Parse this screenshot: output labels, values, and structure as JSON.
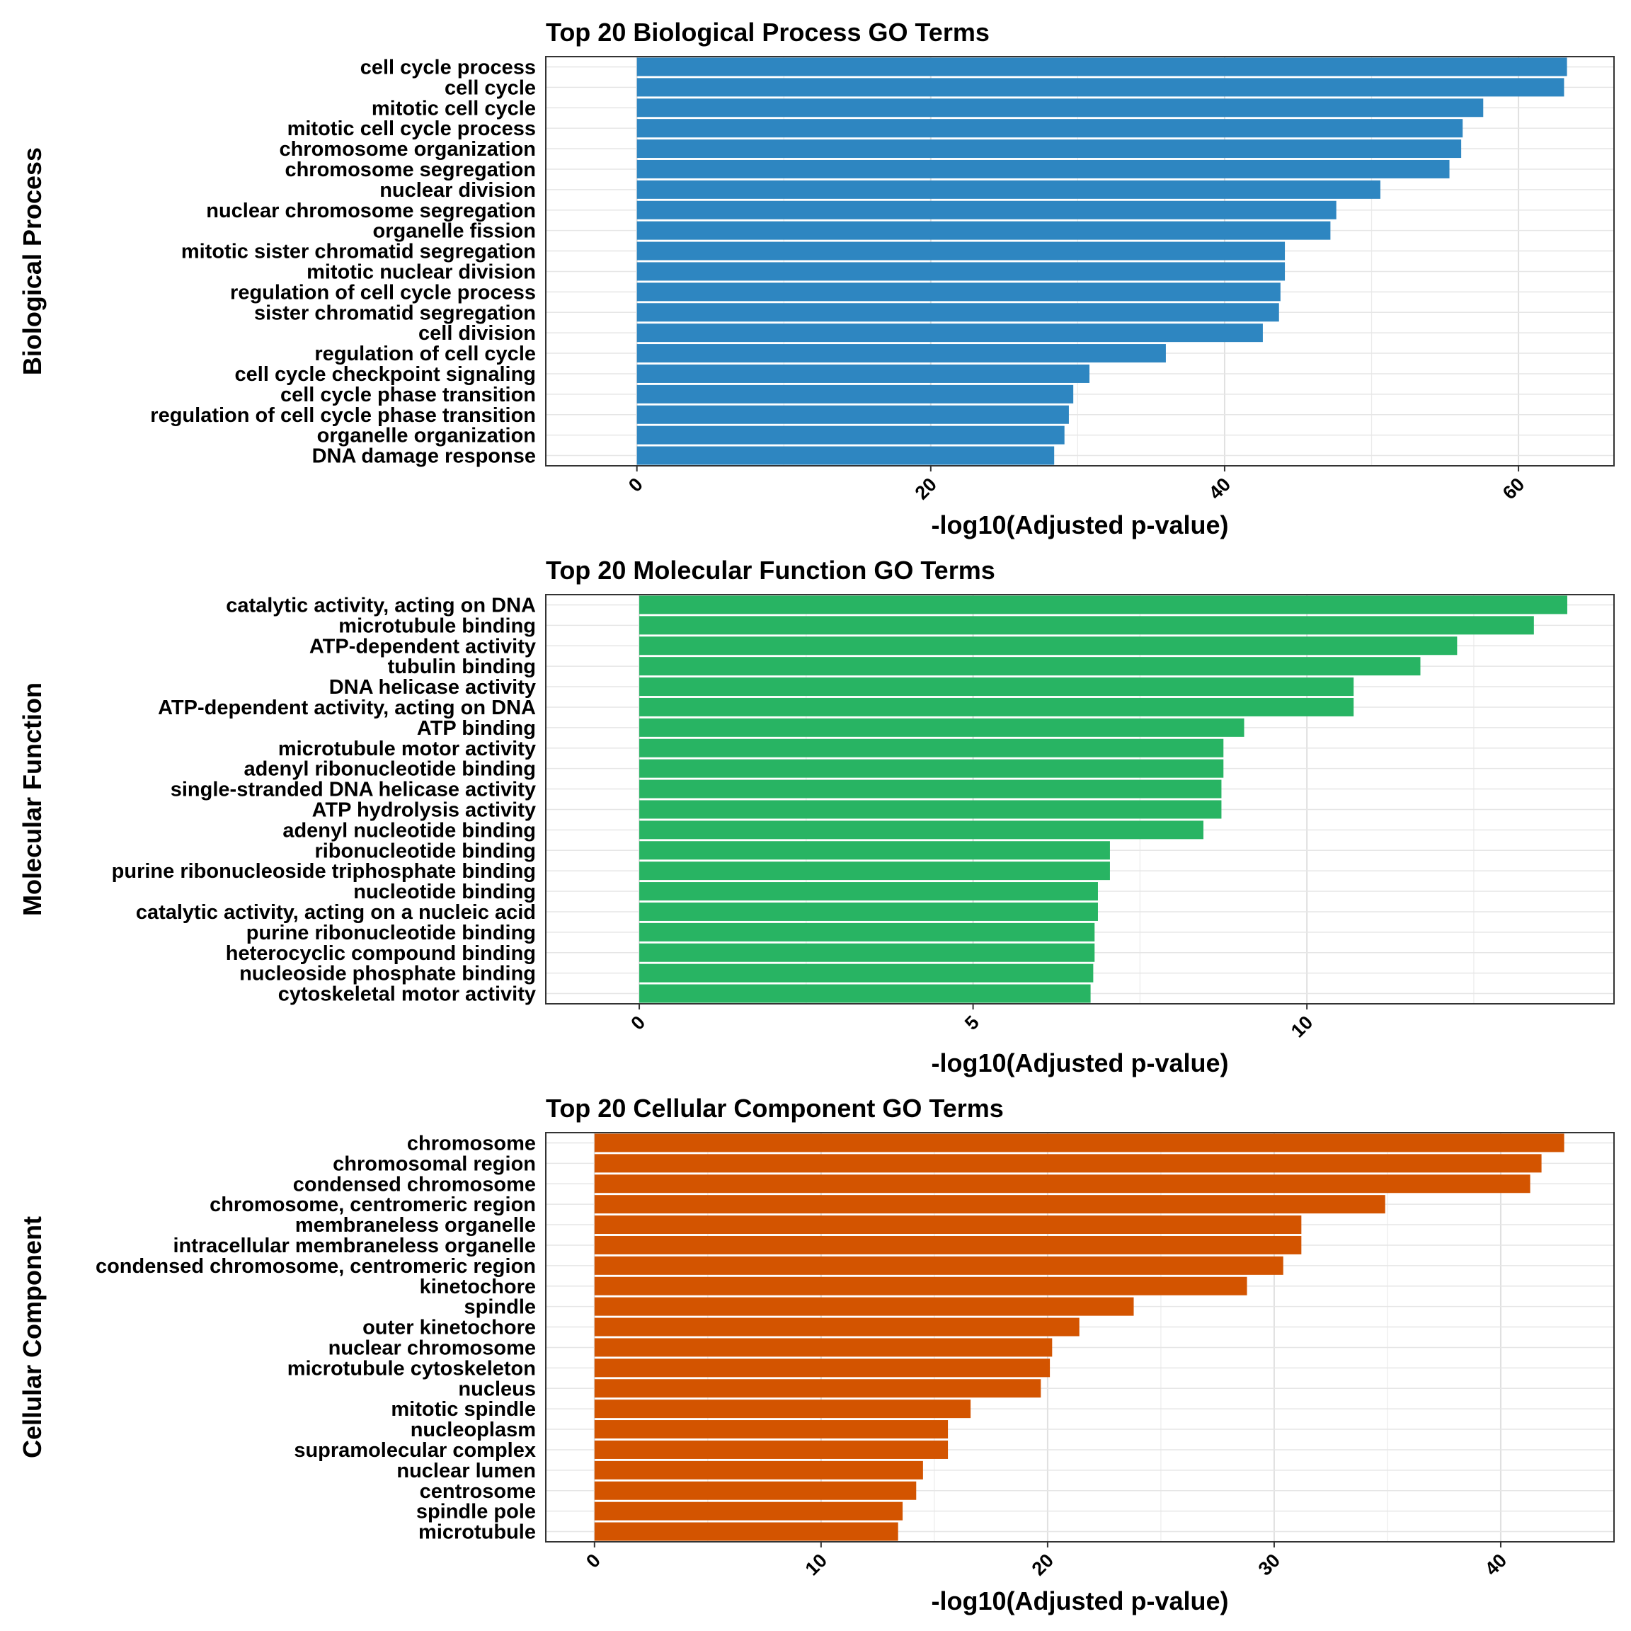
{
  "chart_data": [
    {
      "type": "bar",
      "orientation": "horizontal",
      "title": "Top 20 Biological Process GO Terms",
      "xlabel": "-log10(Adjusted p-value)",
      "ylabel": "Biological Process",
      "xlim": [
        -6.2,
        66.5
      ],
      "xticks": [
        0,
        20,
        40,
        60
      ],
      "color": "#2E86C1",
      "grid": true,
      "categories": [
        "cell cycle process",
        "cell cycle",
        "mitotic cell cycle",
        "mitotic cell cycle process",
        "chromosome organization",
        "chromosome segregation",
        "nuclear division",
        "nuclear chromosome segregation",
        "organelle fission",
        "mitotic sister chromatid segregation",
        "mitotic nuclear division",
        "regulation of cell cycle process",
        "sister chromatid segregation",
        "cell division",
        "regulation of cell cycle",
        "cell cycle checkpoint signaling",
        "cell cycle phase transition",
        "regulation of cell cycle phase transition",
        "organelle organization",
        "DNA damage response"
      ],
      "values": [
        63.3,
        63.1,
        57.6,
        56.2,
        56.1,
        55.3,
        50.6,
        47.6,
        47.2,
        44.1,
        44.1,
        43.8,
        43.7,
        42.6,
        36.0,
        30.8,
        29.7,
        29.4,
        29.1,
        28.4
      ]
    },
    {
      "type": "bar",
      "orientation": "horizontal",
      "title": "Top 20 Molecular Function GO Terms",
      "xlabel": "-log10(Adjusted p-value)",
      "ylabel": "Molecular Function",
      "xlim": [
        -1.4,
        14.6
      ],
      "xticks": [
        0,
        5,
        10
      ],
      "color": "#28B463",
      "grid": true,
      "categories": [
        "catalytic activity, acting on DNA",
        "microtubule binding",
        "ATP-dependent activity",
        "tubulin binding",
        "DNA helicase activity",
        "ATP-dependent activity, acting on DNA",
        "ATP binding",
        "microtubule motor activity",
        "adenyl ribonucleotide binding",
        "single-stranded DNA helicase activity",
        "ATP hydrolysis activity",
        "adenyl nucleotide binding",
        "ribonucleotide binding",
        "purine ribonucleoside triphosphate binding",
        "nucleotide binding",
        "catalytic activity, acting on a nucleic acid",
        "purine ribonucleotide binding",
        "heterocyclic compound binding",
        "nucleoside phosphate binding",
        "cytoskeletal motor activity"
      ],
      "values": [
        13.9,
        13.4,
        12.25,
        11.7,
        10.7,
        10.7,
        9.06,
        8.75,
        8.75,
        8.72,
        8.72,
        8.45,
        7.05,
        7.05,
        6.87,
        6.87,
        6.82,
        6.82,
        6.8,
        6.76
      ]
    },
    {
      "type": "bar",
      "orientation": "horizontal",
      "title": "Top 20 Cellular Component GO Terms",
      "xlabel": "-log10(Adjusted p-value)",
      "ylabel": "Cellular Component",
      "xlim": [
        -2.15,
        45.0
      ],
      "xticks": [
        0,
        10,
        20,
        30,
        40
      ],
      "color": "#D35400",
      "grid": true,
      "categories": [
        "chromosome",
        "chromosomal region",
        "condensed chromosome",
        "chromosome, centromeric region",
        "membraneless organelle",
        "intracellular membraneless organelle",
        "condensed chromosome, centromeric region",
        "kinetochore",
        "spindle",
        "outer kinetochore",
        "nuclear chromosome",
        "microtubule cytoskeleton",
        "nucleus",
        "mitotic spindle",
        "nucleoplasm",
        "supramolecular complex",
        "nuclear lumen",
        "centrosome",
        "spindle pole",
        "microtubule"
      ],
      "values": [
        42.8,
        41.8,
        41.3,
        34.9,
        31.2,
        31.2,
        30.4,
        28.8,
        23.8,
        21.4,
        20.2,
        20.1,
        19.7,
        16.6,
        15.6,
        15.6,
        14.5,
        14.2,
        13.6,
        13.4
      ]
    }
  ]
}
